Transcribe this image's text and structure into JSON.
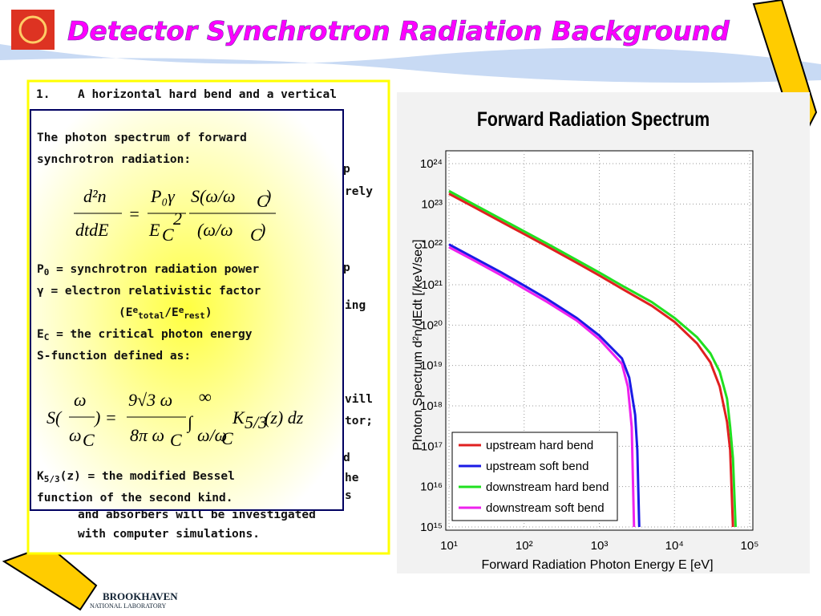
{
  "slide": {
    "title": "Detector Synchrotron Radiation Background",
    "back_lines": [
      "1.",
      "A horizontal hard bend and a vertical",
      "p",
      "rely",
      "p",
      "ing",
      "vill",
      "tor;",
      "d",
      "he",
      "s",
      "and absorbers will be investigated",
      "with computer simulations."
    ],
    "box_lines": [
      [
        {
          "text": "The photon spectrum of forward"
        }
      ],
      [
        {
          "text": "synchrotron radiation:"
        }
      ],
      [
        {
          "text": "P"
        },
        {
          "text": "0",
          "style": "sub"
        },
        {
          "text": " = synchrotron radiation power"
        }
      ],
      [
        {
          "text": "γ = electron relativistic factor"
        }
      ],
      [
        {
          "text": "(E"
        },
        {
          "text": "e",
          "style": "sup"
        },
        {
          "text": "total",
          "style": "sub"
        },
        {
          "text": "/E"
        },
        {
          "text": "e",
          "style": "sup"
        },
        {
          "text": "rest",
          "style": "sub"
        },
        {
          "text": ")"
        }
      ],
      [
        {
          "text": "E"
        },
        {
          "text": "C",
          "style": "sub"
        },
        {
          "text": " = the critical photon energy"
        }
      ],
      [
        {
          "text": "S-function defined as:"
        }
      ],
      [
        {
          "text": "K"
        },
        {
          "text": "5/3",
          "style": "sub"
        },
        {
          "text": "(z) = the modified Bessel"
        }
      ],
      [
        {
          "text": "function of the second kind."
        }
      ]
    ],
    "formula1": [
      "d²n",
      "dtdE",
      "=",
      "P₀γ",
      "E",
      "C",
      "2",
      "S(ω/ω",
      "C",
      ")",
      "(ω/ω",
      "C",
      ")"
    ],
    "formula2": [
      "S(",
      "ω",
      "ω",
      "C",
      ") =",
      "9√3 ω",
      "8π ω",
      "C",
      "∫",
      "∞",
      "ω/ω",
      "C",
      "K",
      "5/3",
      "(z) dz"
    ],
    "logo": [
      "BROOKHAVEN",
      "NATIONAL LABORATORY"
    ]
  },
  "chart_data": {
    "type": "line",
    "title": "Forward Radiation Spectrum",
    "x_label": "Forward Radiation Photon Energy   E [eV]",
    "y_label": "Photon Spectrum  d²n/dEdt [/keV/sec]",
    "log_x": true,
    "log_y": true,
    "grid": true,
    "legend": "lower left",
    "xlim": [
      10,
      100000
    ],
    "ylim": [
      1000000000000000.0,
      1e+24
    ],
    "xticks": [
      {
        "value": 10,
        "label": "10¹"
      },
      {
        "value": 100,
        "label": "10²"
      },
      {
        "value": 1000,
        "label": "10³"
      },
      {
        "value": 10000,
        "label": "10⁴"
      },
      {
        "value": 100000,
        "label": "10⁵"
      }
    ],
    "yticks": [
      {
        "value": 1000000000000000.0,
        "label": "10¹⁵"
      },
      {
        "value": 1e+16,
        "label": "10¹⁶"
      },
      {
        "value": 1e+17,
        "label": "10¹⁷"
      },
      {
        "value": 1e+18,
        "label": "10¹⁸"
      },
      {
        "value": 1e+19,
        "label": "10¹⁹"
      },
      {
        "value": 1e+20,
        "label": "10²⁰"
      },
      {
        "value": 1e+21,
        "label": "10²¹"
      },
      {
        "value": 1e+22,
        "label": "10²²"
      },
      {
        "value": 1e+23,
        "label": "10²³"
      },
      {
        "value": 1e+24,
        "label": "10²⁴"
      }
    ],
    "series": [
      {
        "name": "upstream hard bend",
        "color": "#e02020",
        "x": [
          10,
          20,
          50,
          100,
          200,
          500,
          1000,
          2000,
          5000,
          10000,
          20000,
          30000,
          40000,
          50000,
          55000,
          60000
        ],
        "values": [
          1.8e+23,
          9e+22,
          3.6e+22,
          1.8e+22,
          9e+21,
          3.5e+21,
          1.7e+21,
          8e+20,
          3e+20,
          1.2e+20,
          3.5e+19,
          1.2e+19,
          3e+18,
          4e+17,
          8e+16,
          1000000000000000.0
        ]
      },
      {
        "name": "upstream soft bend",
        "color": "#1a1ae6",
        "x": [
          10,
          20,
          50,
          100,
          200,
          500,
          1000,
          2000,
          2500,
          3000,
          3200,
          3400
        ],
        "values": [
          1e+22,
          5e+21,
          2e+21,
          9.5e+20,
          4.5e+20,
          1.5e+20,
          5.5e+19,
          1.5e+19,
          5e+18,
          6e+17,
          8e+16,
          1000000000000000.0
        ]
      },
      {
        "name": "downstream hard bend",
        "color": "#20e020",
        "x": [
          10,
          20,
          50,
          100,
          200,
          500,
          1000,
          2000,
          5000,
          10000,
          20000,
          30000,
          40000,
          50000,
          55000,
          60000,
          65000
        ],
        "values": [
          2.1e+23,
          1.05e+23,
          4.2e+22,
          2.1e+22,
          1.05e+22,
          4.1e+21,
          2e+21,
          9.5e+20,
          3.7e+20,
          1.5e+20,
          5e+19,
          2e+19,
          7e+18,
          1.5e+18,
          3e+17,
          5e+16,
          1000000000000000.0
        ]
      },
      {
        "name": "downstream soft bend",
        "color": "#ee22ee",
        "x": [
          10,
          20,
          50,
          100,
          200,
          500,
          1000,
          2000,
          2400,
          2700,
          2900
        ],
        "values": [
          8.5e+21,
          4.3e+21,
          1.7e+21,
          8e+20,
          3.8e+20,
          1.3e+20,
          4.5e+19,
          1.1e+19,
          3e+18,
          3e+17,
          1000000000000000.0
        ]
      }
    ]
  }
}
